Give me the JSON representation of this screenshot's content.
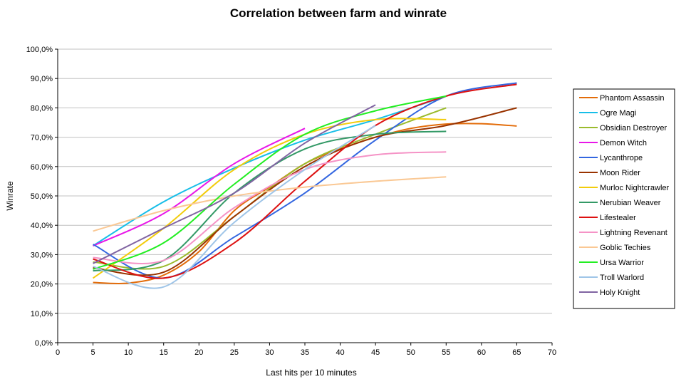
{
  "chart_data": {
    "type": "line",
    "title": "Correlation between farm and winrate",
    "xlabel": "Last hits per 10 minutes",
    "ylabel": "Winrate",
    "xlim": [
      0,
      70
    ],
    "ylim": [
      0,
      100
    ],
    "x_ticks": [
      "0",
      "5",
      "10",
      "15",
      "20",
      "25",
      "30",
      "35",
      "40",
      "45",
      "50",
      "55",
      "60",
      "65",
      "70"
    ],
    "y_ticks": [
      "0,0%",
      "10,0%",
      "20,0%",
      "30,0%",
      "40,0%",
      "50,0%",
      "60,0%",
      "70,0%",
      "80,0%",
      "90,0%",
      "100,0%"
    ],
    "grid": "horizontal",
    "legend_position": "right",
    "series": [
      {
        "name": "Phantom Assassin",
        "color": "#E36C09",
        "x": [
          5,
          10,
          15,
          20,
          25,
          30,
          35,
          40,
          45,
          50,
          55,
          60,
          65
        ],
        "y": [
          20.5,
          20.3,
          23,
          31,
          45,
          53,
          61,
          66,
          70,
          73,
          74.5,
          74.6,
          73.8
        ]
      },
      {
        "name": "Ogre Magi",
        "color": "#17BEE8",
        "x": [
          5,
          15,
          25,
          35,
          45,
          55
        ],
        "y": [
          33,
          48,
          59.5,
          69,
          76,
          84
        ]
      },
      {
        "name": "Obsidian Destroyer",
        "color": "#9BBB2D",
        "x": [
          5,
          15,
          25,
          35,
          45,
          55
        ],
        "y": [
          27.5,
          26,
          43,
          61,
          71,
          80
        ]
      },
      {
        "name": "Demon Witch",
        "color": "#E817E8",
        "x": [
          5,
          15,
          25,
          35
        ],
        "y": [
          33,
          44,
          61,
          73
        ]
      },
      {
        "name": "Lycanthrope",
        "color": "#3366E0",
        "x": [
          5,
          15,
          25,
          35,
          45,
          55,
          65
        ],
        "y": [
          33.5,
          22,
          36,
          51,
          69,
          84,
          88.5
        ]
      },
      {
        "name": "Moon Rider",
        "color": "#993300",
        "x": [
          5,
          15,
          25,
          35,
          45,
          55,
          65
        ],
        "y": [
          25.5,
          24,
          43,
          60,
          70,
          74,
          80
        ]
      },
      {
        "name": "Murloc Nightcrawler",
        "color": "#F2CC0C",
        "x": [
          5,
          15,
          25,
          35,
          45,
          55
        ],
        "y": [
          22,
          39,
          59,
          71,
          76,
          76
        ]
      },
      {
        "name": "Nerubian Weaver",
        "color": "#339966",
        "x": [
          5,
          15,
          25,
          35,
          45,
          55
        ],
        "y": [
          24.5,
          28,
          51,
          66,
          71,
          72
        ]
      },
      {
        "name": "Lifestealer",
        "color": "#DD1111",
        "x": [
          5,
          15,
          25,
          35,
          45,
          55,
          65
        ],
        "y": [
          28.5,
          22,
          34,
          55,
          74,
          84,
          88
        ]
      },
      {
        "name": "Lightning Revenant",
        "color": "#F593C6",
        "x": [
          5,
          15,
          25,
          35,
          45,
          55
        ],
        "y": [
          29,
          28,
          46,
          59,
          64,
          65
        ]
      },
      {
        "name": "Goblic Techies",
        "color": "#FAC894",
        "x": [
          5,
          15,
          25,
          35,
          45,
          55
        ],
        "y": [
          38,
          45,
          50,
          53,
          55,
          56.5
        ]
      },
      {
        "name": "Ursa Warrior",
        "color": "#22EE22",
        "x": [
          5,
          15,
          25,
          35,
          45,
          55
        ],
        "y": [
          25,
          34,
          54,
          71,
          79,
          84
        ]
      },
      {
        "name": "Troll Warlord",
        "color": "#9FC5E8",
        "x": [
          5,
          15,
          25,
          35,
          45
        ],
        "y": [
          26,
          19,
          41,
          59,
          74
        ]
      },
      {
        "name": "Holy Knight",
        "color": "#8064A2",
        "x": [
          5,
          15,
          25,
          35,
          45
        ],
        "y": [
          27,
          39,
          51,
          68,
          81
        ]
      }
    ]
  }
}
